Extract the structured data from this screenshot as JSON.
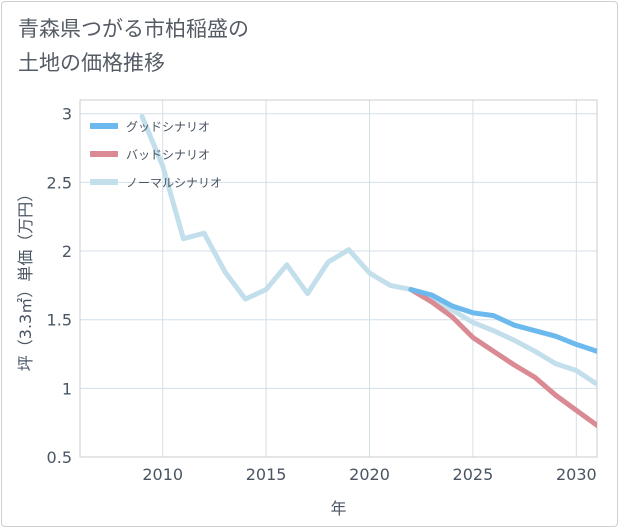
{
  "chart_data": {
    "type": "line",
    "title": "青森県つがる市柏稲盛の\n土地の価格推移",
    "xlabel": "年",
    "ylabel": "坪（3.3㎡）単価（万円）",
    "xlim": [
      2006,
      2031
    ],
    "ylim": [
      0.5,
      3.1
    ],
    "xticks": [
      2010,
      2015,
      2020,
      2025,
      2030
    ],
    "yticks": [
      0.5,
      1,
      1.5,
      2,
      2.5,
      3
    ],
    "ytick_labels": [
      "0.5",
      "1",
      "1.5",
      "2",
      "2.5",
      "3"
    ],
    "grid": true,
    "legend_position": "top-left",
    "series": [
      {
        "name": "グッドシナリオ",
        "color": "#6cb9ee",
        "x": [
          2022,
          2023,
          2024,
          2025,
          2026,
          2027,
          2028,
          2029,
          2030,
          2031
        ],
        "y": [
          1.72,
          1.68,
          1.6,
          1.55,
          1.53,
          1.46,
          1.42,
          1.38,
          1.32,
          1.27
        ]
      },
      {
        "name": "バッドシナリオ",
        "color": "#d98a92",
        "x": [
          2022,
          2023,
          2024,
          2025,
          2026,
          2027,
          2028,
          2029,
          2030,
          2031
        ],
        "y": [
          1.72,
          1.63,
          1.52,
          1.37,
          1.27,
          1.17,
          1.08,
          0.95,
          0.84,
          0.73
        ]
      },
      {
        "name": "ノーマルシナリオ",
        "color": "#c3dfec",
        "x": [
          2009,
          2010,
          2011,
          2012,
          2013,
          2014,
          2015,
          2016,
          2017,
          2018,
          2019,
          2020,
          2021,
          2022,
          2023,
          2024,
          2025,
          2026,
          2027,
          2028,
          2029,
          2030,
          2031
        ],
        "y": [
          2.98,
          2.62,
          2.09,
          2.13,
          1.85,
          1.65,
          1.72,
          1.9,
          1.69,
          1.92,
          2.01,
          1.84,
          1.75,
          1.72,
          1.65,
          1.57,
          1.48,
          1.42,
          1.35,
          1.27,
          1.18,
          1.13,
          1.03
        ]
      }
    ]
  }
}
